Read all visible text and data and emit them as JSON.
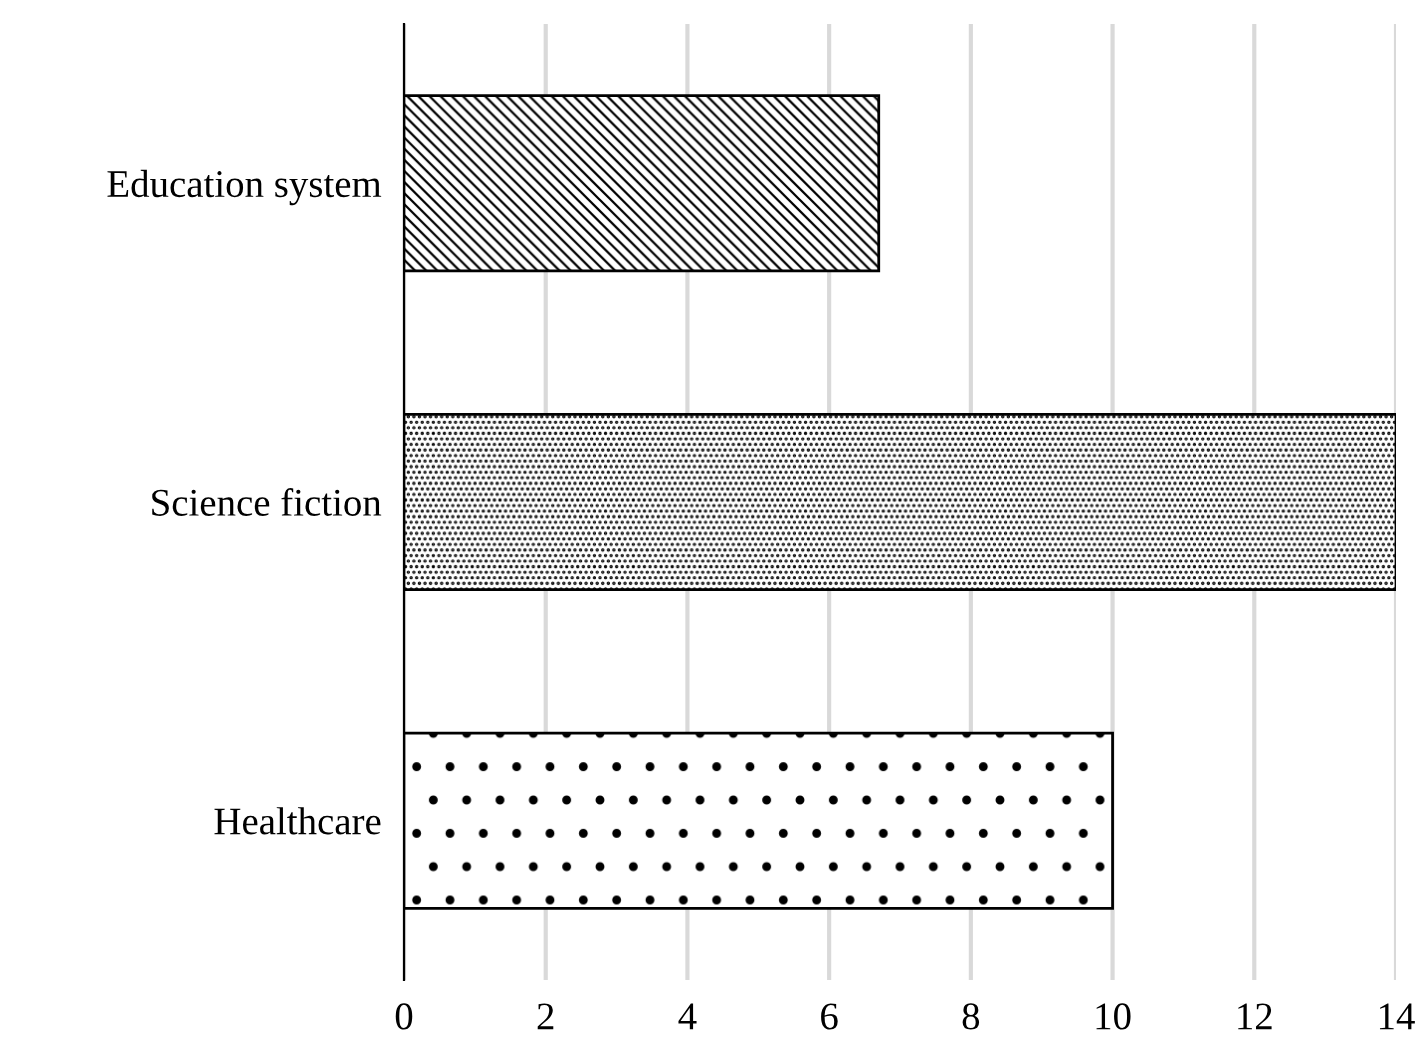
{
  "chart_data": {
    "type": "bar",
    "orientation": "horizontal",
    "categories": [
      "Education system",
      "Science fiction",
      "Healthcare"
    ],
    "values": [
      6.7,
      14,
      10
    ],
    "colors": [
      "#000000",
      "#000000",
      "#000000"
    ],
    "xlim": [
      0,
      14
    ],
    "xticks": [
      0,
      2,
      4,
      6,
      8,
      10,
      12,
      14
    ],
    "grid": "x"
  }
}
